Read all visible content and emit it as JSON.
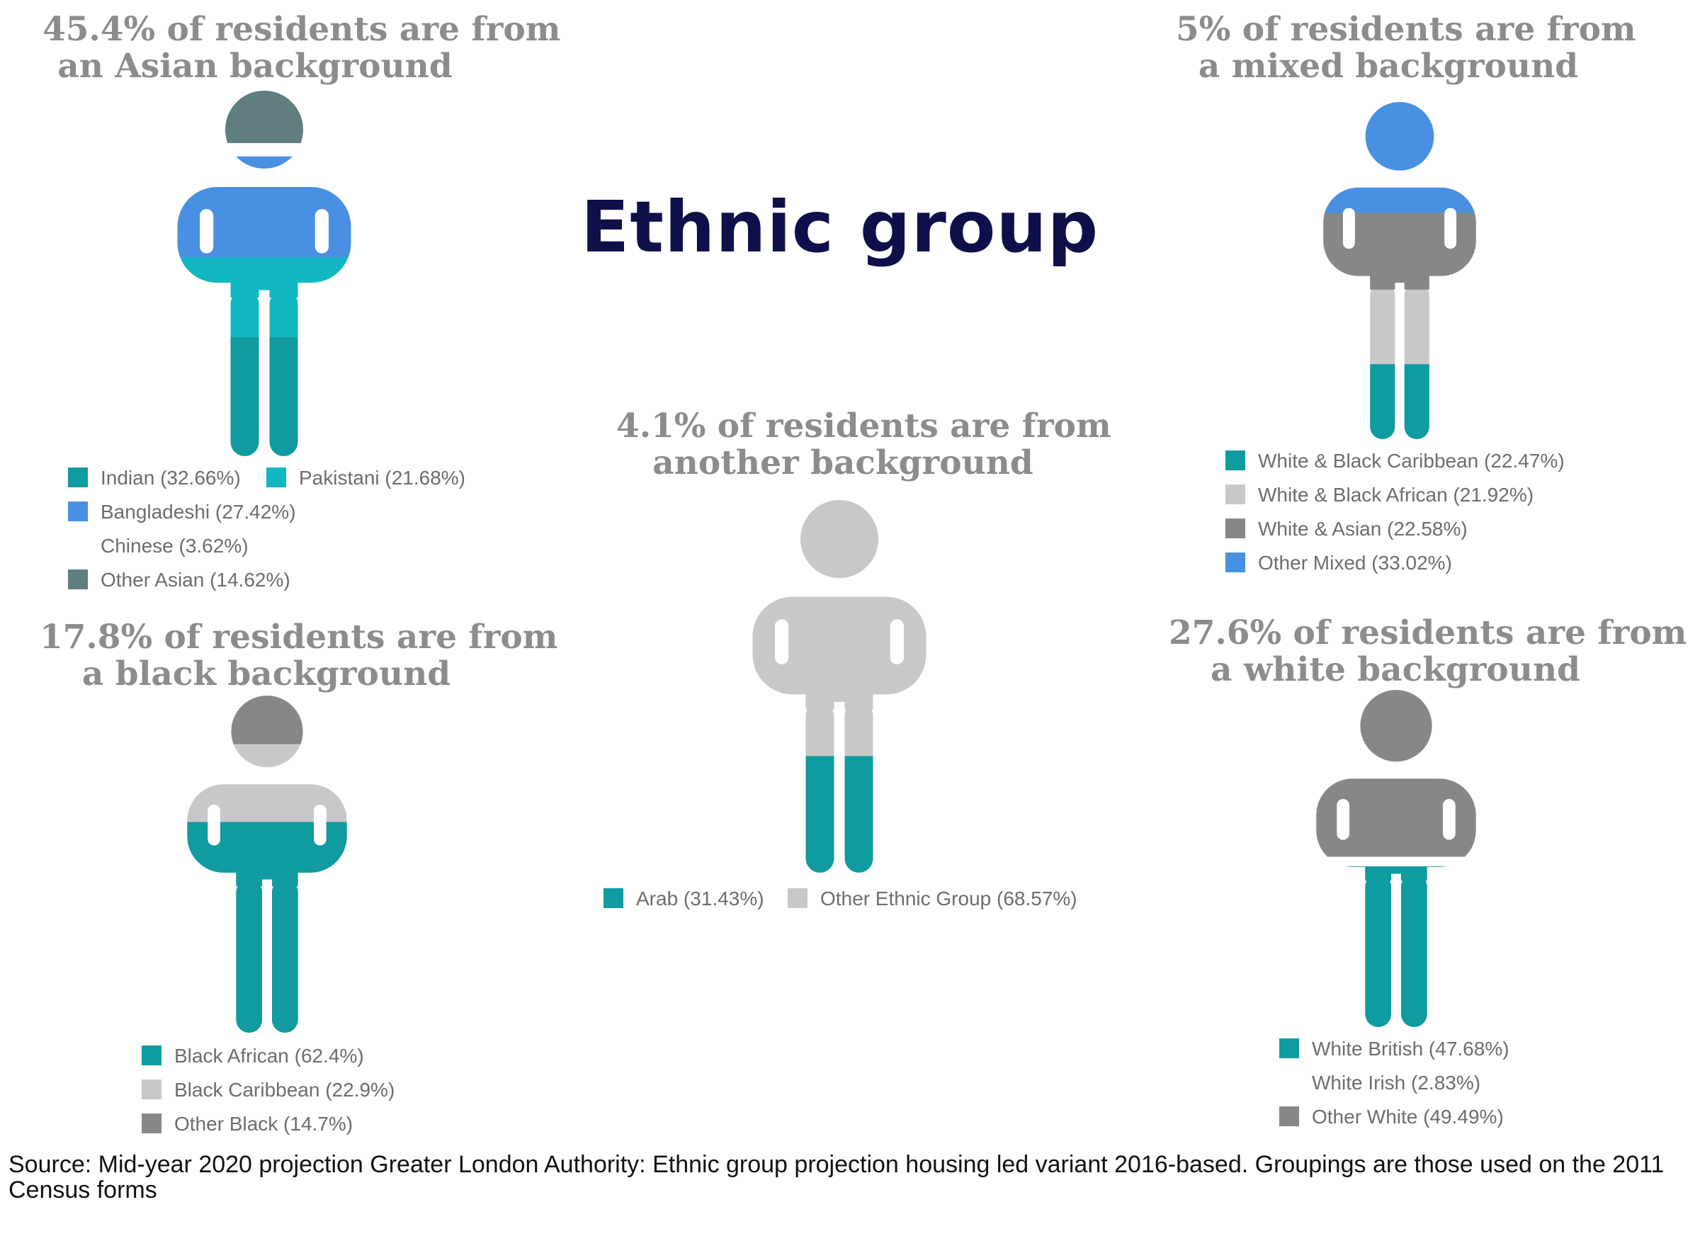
{
  "title": "Ethnic group",
  "source": "Source: Mid-year 2020 projection Greater London Authority: Ethnic group projection housing led variant 2016-based. Groupings are those used  on the 2011 Census forms",
  "colors": {
    "teal": "#0f9b9f",
    "cyan": "#12b8c1",
    "blue": "#4a90e2",
    "slate": "#607d80",
    "light_grey": "#c8c8c8",
    "dark_grey": "#878787",
    "heading_grey": "#8c8c8c",
    "title_navy": "#0f0f4a"
  },
  "chart_data": [
    {
      "type": "pictograph",
      "group": "Asian",
      "title_line1": "45.4% of residents are from",
      "title_line2": "an Asian background",
      "share_of_residents_pct": 45.4,
      "categories": [
        {
          "label": "Indian (32.66%)",
          "name": "Indian",
          "value": 32.66,
          "color": "#0f9b9f"
        },
        {
          "label": "Pakistani (21.68%)",
          "name": "Pakistani",
          "value": 21.68,
          "color": "#12b8c1"
        },
        {
          "label": "Bangladeshi (27.42%)",
          "name": "Bangladeshi",
          "value": 27.42,
          "color": "#4a90e2"
        },
        {
          "label": "Chinese (3.62%)",
          "name": "Chinese",
          "value": 3.62,
          "color": "#ffffff"
        },
        {
          "label": "Other Asian (14.62%)",
          "name": "Other Asian",
          "value": 14.62,
          "color": "#607d80"
        }
      ]
    },
    {
      "type": "pictograph",
      "group": "Mixed",
      "title_line1": "5% of residents are from",
      "title_line2": "a mixed background",
      "share_of_residents_pct": 5,
      "categories": [
        {
          "label": "White & Black Caribbean (22.47%)",
          "name": "White & Black Caribbean",
          "value": 22.47,
          "color": "#0f9b9f"
        },
        {
          "label": "White & Black African (21.92%)",
          "name": "White & Black African",
          "value": 21.92,
          "color": "#c8c8c8"
        },
        {
          "label": "White & Asian (22.58%)",
          "name": "White & Asian",
          "value": 22.58,
          "color": "#878787"
        },
        {
          "label": "Other Mixed (33.02%)",
          "name": "Other Mixed",
          "value": 33.02,
          "color": "#4a90e2"
        }
      ]
    },
    {
      "type": "pictograph",
      "group": "Other",
      "title_line1": "4.1% of residents are from",
      "title_line2": "another background",
      "share_of_residents_pct": 4.1,
      "categories": [
        {
          "label": "Arab (31.43%)",
          "name": "Arab",
          "value": 31.43,
          "color": "#0f9b9f"
        },
        {
          "label": "Other Ethnic Group (68.57%)",
          "name": "Other Ethnic Group",
          "value": 68.57,
          "color": "#c8c8c8"
        }
      ]
    },
    {
      "type": "pictograph",
      "group": "Black",
      "title_line1": "17.8% of residents are from",
      "title_line2": "a black background",
      "share_of_residents_pct": 17.8,
      "categories": [
        {
          "label": "Black African (62.4%)",
          "name": "Black African",
          "value": 62.4,
          "color": "#0f9b9f"
        },
        {
          "label": "Black Caribbean (22.9%)",
          "name": "Black Caribbean",
          "value": 22.9,
          "color": "#c8c8c8"
        },
        {
          "label": "Other Black (14.7%)",
          "name": "Other Black",
          "value": 14.7,
          "color": "#878787"
        }
      ]
    },
    {
      "type": "pictograph",
      "group": "White",
      "title_line1": "27.6% of residents are from",
      "title_line2": "a white background",
      "share_of_residents_pct": 27.6,
      "categories": [
        {
          "label": "White British (47.68%)",
          "name": "White British",
          "value": 47.68,
          "color": "#0f9b9f"
        },
        {
          "label": "White Irish (2.83%)",
          "name": "White Irish",
          "value": 2.83,
          "color": "#ffffff"
        },
        {
          "label": "Other White (49.49%)",
          "name": "Other White",
          "value": 49.49,
          "color": "#878787"
        }
      ]
    }
  ]
}
